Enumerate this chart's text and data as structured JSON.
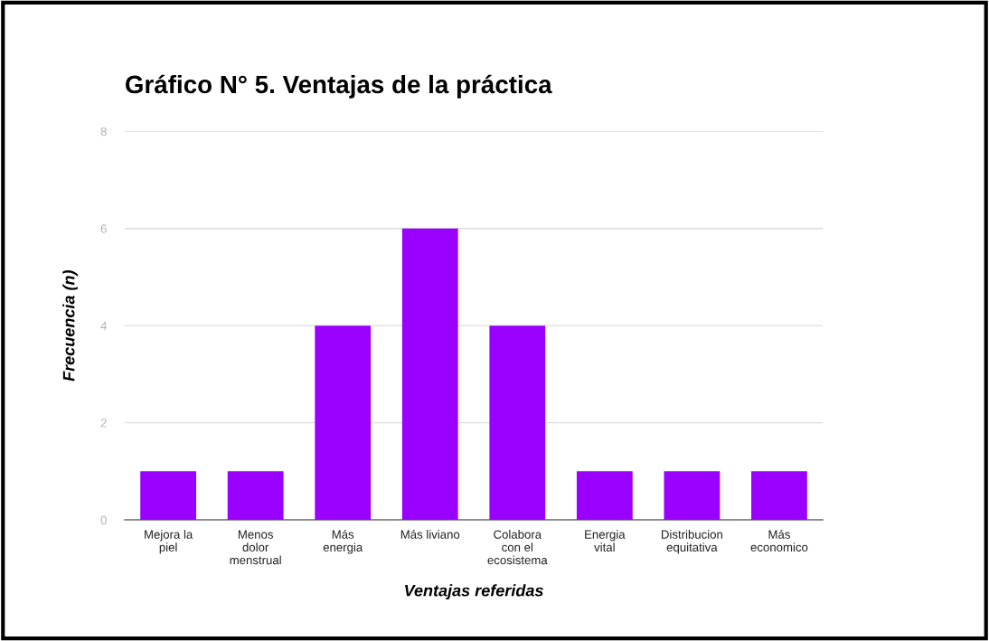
{
  "chart_data": {
    "type": "bar",
    "title": "Gráfico N° 5. Ventajas de la práctica",
    "xlabel": "Ventajas referidas",
    "ylabel": "Frecuencia (n)",
    "categories": [
      "Mejora la\npiel",
      "Menos\ndolor\nmenstrual",
      "Más\nenergia",
      "Más liviano",
      "Colabora\ncon el\necosistema",
      "Energia\nvital",
      "Distribucion\nequitativa",
      "Más\neconomico"
    ],
    "values": [
      1,
      1,
      4,
      6,
      4,
      1,
      1,
      1
    ],
    "color": "#9900ff",
    "ylim": [
      0,
      8
    ],
    "yticks": [
      0,
      2,
      4,
      6,
      8
    ],
    "grid": "y",
    "legend": false
  }
}
